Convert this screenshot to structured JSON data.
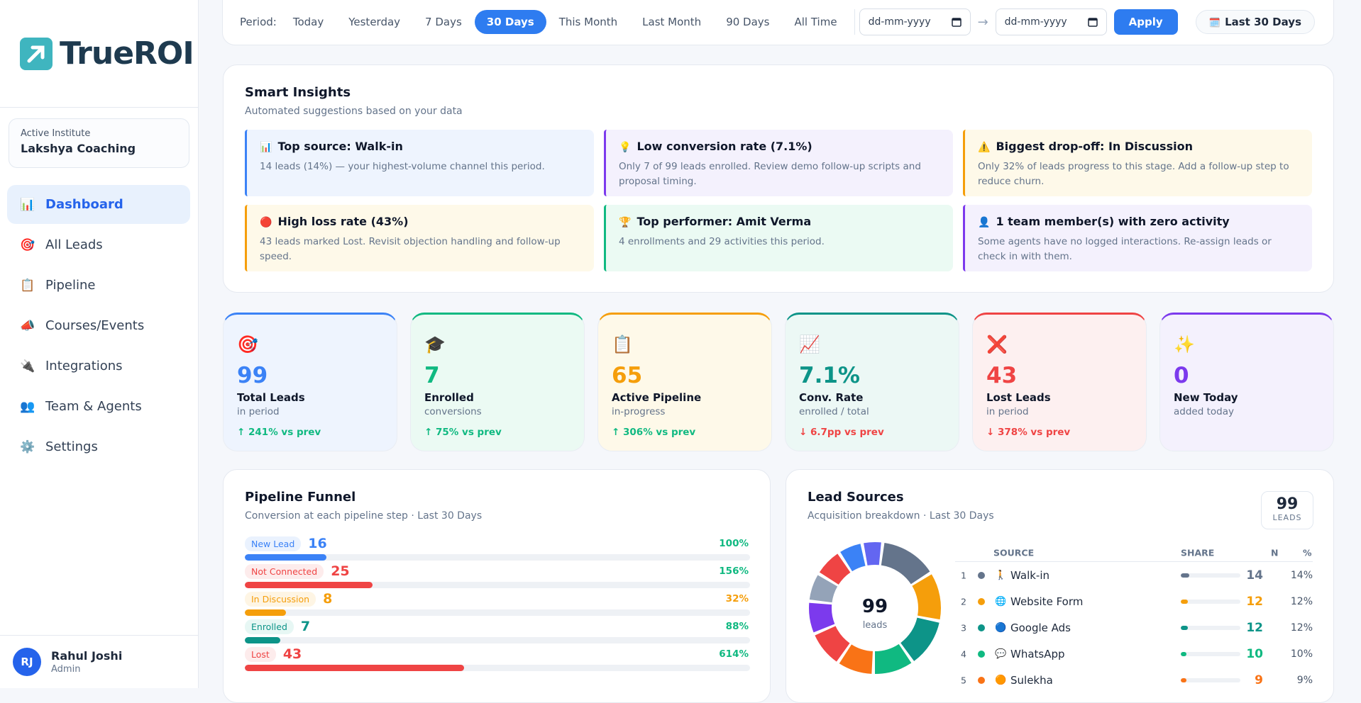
{
  "brand": "TrueROI",
  "institute": {
    "label": "Active Institute",
    "name": "Lakshya Coaching"
  },
  "nav": [
    {
      "icon": "📊",
      "label": "Dashboard",
      "active": true
    },
    {
      "icon": "🎯",
      "label": "All Leads",
      "active": false
    },
    {
      "icon": "📋",
      "label": "Pipeline",
      "active": false
    },
    {
      "icon": "📣",
      "label": "Courses/Events",
      "active": false
    },
    {
      "icon": "🔌",
      "label": "Integrations",
      "active": false
    },
    {
      "icon": "👥",
      "label": "Team & Agents",
      "active": false
    },
    {
      "icon": "⚙️",
      "label": "Settings",
      "active": false
    }
  ],
  "user": {
    "initials": "RJ",
    "name": "Rahul Joshi",
    "role": "Admin"
  },
  "period": {
    "label": "Period:",
    "options": [
      {
        "label": "Today",
        "selected": false
      },
      {
        "label": "Yesterday",
        "selected": false
      },
      {
        "label": "7 Days",
        "selected": false
      },
      {
        "label": "30 Days",
        "selected": true
      },
      {
        "label": "This Month",
        "selected": false
      },
      {
        "label": "Last Month",
        "selected": false
      },
      {
        "label": "90 Days",
        "selected": false
      },
      {
        "label": "All Time",
        "selected": false
      }
    ],
    "from_placeholder": "dd-mm-yyyy",
    "arrow": "→",
    "to_placeholder": "dd-mm-yyyy",
    "apply": "Apply",
    "badge_icon": "🗓️",
    "badge": "Last 30 Days"
  },
  "insights": {
    "title": "Smart Insights",
    "subtitle": "Automated suggestions based on your data",
    "items": [
      {
        "icon": "📊",
        "title": "Top source: Walk-in",
        "text": "14 leads (14%) — your highest-volume channel this period.",
        "color": "#3b82f6",
        "bg": "#eef4fe"
      },
      {
        "icon": "💡",
        "title": "Low conversion rate (7.1%)",
        "text": "Only 7 of 99 leads enrolled. Review demo follow-up scripts and proposal timing.",
        "color": "#7c3aed",
        "bg": "#f4f1fd"
      },
      {
        "icon": "⚠️",
        "title": "Biggest drop-off: In Discussion",
        "text": "Only 32% of leads progress to this stage. Add a follow-up step to reduce churn.",
        "color": "#f59e0b",
        "bg": "#fef9e9"
      },
      {
        "icon": "🔴",
        "title": "High loss rate (43%)",
        "text": "43 leads marked Lost. Revisit objection handling and follow-up speed.",
        "color": "#f59e0b",
        "bg": "#fef9e9"
      },
      {
        "icon": "🏆",
        "title": "Top performer: Amit Verma",
        "text": "4 enrollments and 29 activities this period.",
        "color": "#10b981",
        "bg": "#ebfaf3"
      },
      {
        "icon": "👤",
        "title": "1 team member(s) with zero activity",
        "text": "Some agents have no logged interactions. Re-assign leads or check in with them.",
        "color": "#7c3aed",
        "bg": "#f4f1fd"
      }
    ]
  },
  "kpis": [
    {
      "icon": "🎯",
      "value": "99",
      "label": "Total Leads",
      "sub": "in period",
      "change": "↑ 241% vs prev",
      "trend": "up",
      "color": "#3b82f6",
      "bg": "#eef4fe"
    },
    {
      "icon": "🎓",
      "value": "7",
      "label": "Enrolled",
      "sub": "conversions",
      "change": "↑ 75% vs prev",
      "trend": "up",
      "color": "#10b981",
      "bg": "#ebfaf3"
    },
    {
      "icon": "📋",
      "value": "65",
      "label": "Active Pipeline",
      "sub": "in-progress",
      "change": "↑ 306% vs prev",
      "trend": "up",
      "color": "#f59e0b",
      "bg": "#fef9e9"
    },
    {
      "icon": "📈",
      "value": "7.1%",
      "label": "Conv. Rate",
      "sub": "enrolled / total",
      "change": "↓ 6.7pp vs prev",
      "trend": "down",
      "color": "#0d9488",
      "bg": "#ecf8f5"
    },
    {
      "icon": "❌",
      "value": "43",
      "label": "Lost Leads",
      "sub": "in period",
      "change": "↓ 378% vs prev",
      "trend": "down",
      "color": "#ef4444",
      "bg": "#fdf0f0"
    },
    {
      "icon": "✨",
      "value": "0",
      "label": "New Today",
      "sub": "added today",
      "change": null,
      "trend": null,
      "color": "#7c3aed",
      "bg": "#f4f1fd"
    }
  ],
  "funnel": {
    "title": "Pipeline Funnel",
    "subtitle": "Conversion at each pipeline step · Last 30 Days",
    "stages": [
      {
        "name": "New Lead",
        "count": 16,
        "percent": "100%",
        "color": "#3b82f6",
        "bg": "#eaf2fe"
      },
      {
        "name": "Not Connected",
        "count": 25,
        "percent": "156%",
        "color": "#ef4444",
        "bg": "#fdecec"
      },
      {
        "name": "In Discussion",
        "count": 8,
        "percent": "32%",
        "color": "#f59e0b",
        "bg": "#fef5e4"
      },
      {
        "name": "Enrolled",
        "count": 7,
        "percent": "88%",
        "color": "#0d9488",
        "bg": "#e7f7f4"
      },
      {
        "name": "Lost",
        "count": 43,
        "percent": "614%",
        "color": "#ef4444",
        "bg": "#fdecec"
      }
    ]
  },
  "lead_sources": {
    "title": "Lead Sources",
    "subtitle": "Acquisition breakdown · Last 30 Days",
    "total": 99,
    "total_label": "LEADS",
    "center_label": "leads",
    "columns": [
      "SOURCE",
      "SHARE",
      "N",
      "%"
    ],
    "rows": [
      {
        "rank": 1,
        "icon": "🚶",
        "name": "Walk-in",
        "n": 14,
        "pct": "14%",
        "color": "#64748b"
      },
      {
        "rank": 2,
        "icon": "🌐",
        "name": "Website Form",
        "n": 12,
        "pct": "12%",
        "color": "#f59e0b"
      },
      {
        "rank": 3,
        "icon": "🔵",
        "name": "Google Ads",
        "n": 12,
        "pct": "12%",
        "color": "#0d9488"
      },
      {
        "rank": 4,
        "icon": "💬",
        "name": "WhatsApp",
        "n": 10,
        "pct": "10%",
        "color": "#10b981"
      },
      {
        "rank": 5,
        "icon": "🟠",
        "name": "Sulekha",
        "n": 9,
        "pct": "9%",
        "color": "#f97316"
      }
    ],
    "other_segments": [
      {
        "name": null,
        "value": 9,
        "color": "#ef4444"
      },
      {
        "name": null,
        "value": 8,
        "color": "#7c3aed"
      },
      {
        "name": null,
        "value": 7,
        "color": "#94a3b8"
      },
      {
        "name": null,
        "value": 7,
        "color": "#ef4444"
      },
      {
        "name": null,
        "value": 6,
        "color": "#3b82f6"
      },
      {
        "name": null,
        "value": 5,
        "color": "#6366f1"
      }
    ]
  }
}
